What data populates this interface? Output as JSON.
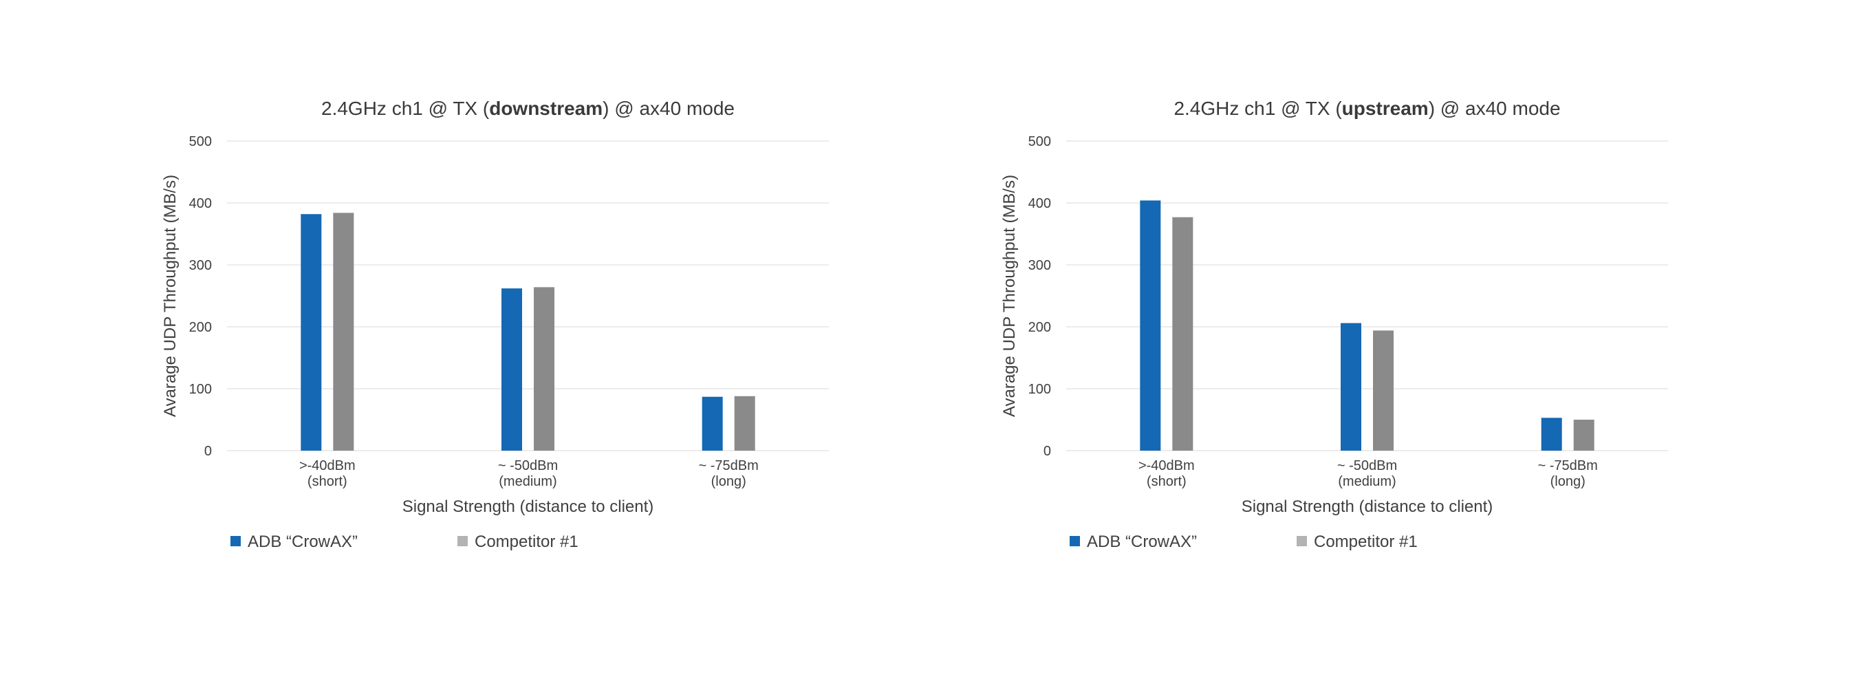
{
  "colors": {
    "series_0": "#1568b3",
    "series_1": "#8a8a8a",
    "legend_series_1": "#b3b3b3",
    "grid": "#e6e6e6",
    "axis_text": "#404040",
    "title_text": "#3a3a3a"
  },
  "chart_data": [
    {
      "type": "bar",
      "title_parts": [
        {
          "text": "2.4GHz ch1 @ TX (",
          "bold": false
        },
        {
          "text": "downstream",
          "bold": true
        },
        {
          "text": ") @ ax40 mode",
          "bold": false
        }
      ],
      "title": "2.4GHz ch1 @ TX (downstream) @ ax40 mode",
      "xlabel": "Signal Strength (distance to client)",
      "ylabel": "Avarage UDP Throughput (MB/s)",
      "ylim": [
        0,
        500
      ],
      "yticks": [
        0,
        100,
        200,
        300,
        400,
        500
      ],
      "grid": true,
      "legend_placement": "bottom-left",
      "categories": [
        [
          ">-40dBm",
          "(short)"
        ],
        [
          "~ -50dBm",
          "(medium)"
        ],
        [
          "~ -75dBm",
          "(long)"
        ]
      ],
      "series": [
        {
          "name": "ADB “CrowAX”",
          "values": [
            382,
            262,
            87
          ]
        },
        {
          "name": "Competitor #1",
          "values": [
            384,
            264,
            88
          ]
        }
      ]
    },
    {
      "type": "bar",
      "title_parts": [
        {
          "text": "2.4GHz ch1 @ TX (",
          "bold": false
        },
        {
          "text": "upstream",
          "bold": true
        },
        {
          "text": ") @ ax40 mode",
          "bold": false
        }
      ],
      "title": "2.4GHz ch1 @ TX (upstream) @ ax40 mode",
      "xlabel": "Signal Strength (distance to client)",
      "ylabel": "Avarage UDP Throughput (MB/s)",
      "ylim": [
        0,
        500
      ],
      "yticks": [
        0,
        100,
        200,
        300,
        400,
        500
      ],
      "grid": true,
      "legend_placement": "bottom-left",
      "categories": [
        [
          ">-40dBm",
          "(short)"
        ],
        [
          "~ -50dBm",
          "(medium)"
        ],
        [
          "~ -75dBm",
          "(long)"
        ]
      ],
      "series": [
        {
          "name": "ADB “CrowAX”",
          "values": [
            404,
            206,
            53
          ]
        },
        {
          "name": "Competitor #1",
          "values": [
            377,
            194,
            50
          ]
        }
      ]
    }
  ]
}
